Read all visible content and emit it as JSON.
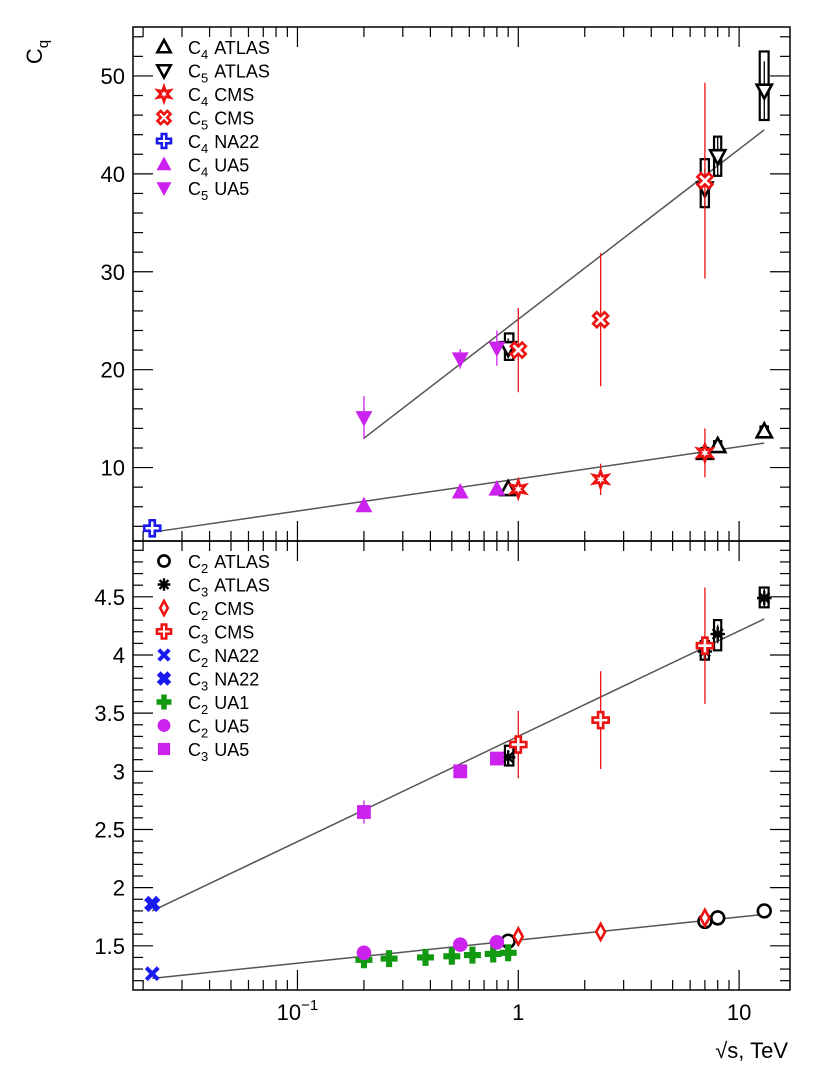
{
  "chart_data": [
    {
      "type": "scatter",
      "panel": "top",
      "ylabel": "C",
      "ylabel_sub": "q",
      "xscale": "log",
      "xlim": [
        0.018,
        17
      ],
      "ylim": [
        2.5,
        55
      ],
      "y_ticks": [
        10,
        20,
        30,
        40,
        50
      ],
      "y_tick_labels": [
        "10",
        "20",
        "30",
        "40",
        "50"
      ],
      "legend_position": "top-left",
      "legend": [
        {
          "base": "C",
          "sub": "4",
          "exp": "ATLAS",
          "marker": "triangle-up-open",
          "color": "#000000"
        },
        {
          "base": "C",
          "sub": "5",
          "exp": "ATLAS",
          "marker": "triangle-down-open",
          "color": "#000000"
        },
        {
          "base": "C",
          "sub": "4",
          "exp": "CMS",
          "marker": "star-open",
          "color": "#ee1111"
        },
        {
          "base": "C",
          "sub": "5",
          "exp": "CMS",
          "marker": "cross-x-open",
          "color": "#ee1111"
        },
        {
          "base": "C",
          "sub": "4",
          "exp": "NA22",
          "marker": "cross-open",
          "color": "#1a1aee"
        },
        {
          "base": "C",
          "sub": "4",
          "exp": "UA5",
          "marker": "triangle-up-filled",
          "color": "#cc22ee"
        },
        {
          "base": "C",
          "sub": "5",
          "exp": "UA5",
          "marker": "triangle-down-filled",
          "color": "#cc22ee"
        }
      ],
      "fit_lines": [
        {
          "from": [
            0.022,
            3.4
          ],
          "to": [
            13,
            12.5
          ]
        },
        {
          "from": [
            0.2,
            13.0
          ],
          "to": [
            13,
            44.5
          ]
        }
      ],
      "series": [
        {
          "name": "C4 ATLAS",
          "marker": "triangle-up-open",
          "color": "#000000",
          "x": [
            0.9,
            7,
            8,
            13
          ],
          "y": [
            7.8,
            11.5,
            12.2,
            13.7
          ],
          "err": [
            0.3,
            0.4,
            0.4,
            0.5
          ],
          "box": [
            [
              0.88,
              0.92,
              7.4,
              8.2
            ],
            [
              6.75,
              7.25,
              11.0,
              12.0
            ],
            [
              7.7,
              8.3,
              11.8,
              12.7
            ],
            [
              12.5,
              13.5,
              13.2,
              14.2
            ]
          ]
        },
        {
          "name": "C5 ATLAS",
          "marker": "triangle-down-open",
          "color": "#000000",
          "x": [
            0.9,
            7,
            8,
            13
          ],
          "y": [
            22.2,
            38.5,
            41.8,
            48.5
          ],
          "err": [
            1,
            2,
            2,
            3
          ],
          "box": [
            [
              0.87,
              0.95,
              21.0,
              23.7
            ],
            [
              6.7,
              7.3,
              36.6,
              41.5
            ],
            [
              7.7,
              8.3,
              39.8,
              43.8
            ],
            [
              12.4,
              13.6,
              45.5,
              52.5
            ]
          ]
        },
        {
          "name": "C4 CMS",
          "marker": "star-open",
          "color": "#ee1111",
          "x": [
            1.0,
            2.36,
            7
          ],
          "y": [
            7.8,
            8.8,
            11.5
          ],
          "err": [
            0.6,
            1.6,
            2.5
          ]
        },
        {
          "name": "C5 CMS",
          "marker": "cross-x-open",
          "color": "#ee1111",
          "x": [
            1.0,
            2.36,
            7
          ],
          "y": [
            22.0,
            25.1,
            39.3
          ],
          "err": [
            4.3,
            6.8,
            10.0
          ]
        },
        {
          "name": "C4 NA22",
          "marker": "cross-open",
          "color": "#1a1aee",
          "x": [
            0.022
          ],
          "y": [
            3.8
          ],
          "err": [
            0.2
          ]
        },
        {
          "name": "C4 UA5",
          "marker": "triangle-up-filled",
          "color": "#cc22ee",
          "x": [
            0.2,
            0.546,
            0.8
          ],
          "y": [
            6.1,
            7.5,
            7.8
          ],
          "err": [
            0.3,
            0.3,
            0.3
          ]
        },
        {
          "name": "C5 UA5",
          "marker": "triangle-down-filled",
          "color": "#cc22ee",
          "x": [
            0.2,
            0.546,
            0.8
          ],
          "y": [
            15.1,
            21.1,
            22.2
          ],
          "err": [
            2.2,
            1.0,
            1.8
          ]
        }
      ]
    },
    {
      "type": "scatter",
      "panel": "bottom",
      "xlabel": "√s, TeV",
      "xscale": "log",
      "xlim": [
        0.018,
        17
      ],
      "ylim": [
        1.12,
        4.98
      ],
      "x_ticks_labeled": [
        0.1,
        1,
        10
      ],
      "x_tick_labels": [
        {
          "base": "10",
          "exp": "−1"
        },
        {
          "base": "1",
          "exp": ""
        },
        {
          "base": "10",
          "exp": ""
        }
      ],
      "y_ticks": [
        1.5,
        2,
        2.5,
        3,
        3.5,
        4,
        4.5
      ],
      "y_tick_labels": [
        "1.5",
        "2",
        "2.5",
        "3",
        "3.5",
        "4",
        "4.5"
      ],
      "legend_position": "top-left",
      "legend": [
        {
          "base": "C",
          "sub": "2",
          "exp": "ATLAS",
          "marker": "circle-open",
          "color": "#000000"
        },
        {
          "base": "C",
          "sub": "3",
          "exp": "ATLAS",
          "marker": "asterisk",
          "color": "#000000"
        },
        {
          "base": "C",
          "sub": "2",
          "exp": "CMS",
          "marker": "diamond-open",
          "color": "#ee1111"
        },
        {
          "base": "C",
          "sub": "3",
          "exp": "CMS",
          "marker": "cross-open",
          "color": "#ee1111"
        },
        {
          "base": "C",
          "sub": "2",
          "exp": "NA22",
          "marker": "x-filled",
          "color": "#1a1aee"
        },
        {
          "base": "C",
          "sub": "3",
          "exp": "NA22",
          "marker": "cross-x-filled",
          "color": "#1a1aee"
        },
        {
          "base": "C",
          "sub": "2",
          "exp": "UA1",
          "marker": "cross-filled",
          "color": "#119911"
        },
        {
          "base": "C",
          "sub": "2",
          "exp": "UA5",
          "marker": "circle-filled",
          "color": "#cc22ee"
        },
        {
          "base": "C",
          "sub": "3",
          "exp": "UA5",
          "marker": "square-filled",
          "color": "#cc22ee"
        }
      ],
      "fit_lines": [
        {
          "from": [
            0.022,
            1.22
          ],
          "to": [
            13,
            1.77
          ]
        },
        {
          "from": [
            0.022,
            1.8
          ],
          "to": [
            13,
            4.31
          ]
        }
      ],
      "series": [
        {
          "name": "C2 ATLAS",
          "marker": "circle-open",
          "color": "#000000",
          "x": [
            0.9,
            7,
            8,
            13
          ],
          "y": [
            1.54,
            1.71,
            1.74,
            1.8
          ],
          "err": [
            0.02,
            0.02,
            0.02,
            0.02
          ],
          "box": [
            [
              0.88,
              0.92,
              1.52,
              1.56
            ],
            [
              6.75,
              7.25,
              1.69,
              1.73
            ],
            [
              7.7,
              8.3,
              1.72,
              1.76
            ],
            [
              12.5,
              13.5,
              1.78,
              1.82
            ]
          ]
        },
        {
          "name": "C3 ATLAS",
          "marker": "asterisk",
          "color": "#000000",
          "x": [
            0.9,
            7,
            8,
            13
          ],
          "y": [
            3.12,
            4.03,
            4.18,
            4.49
          ],
          "err": [
            0.05,
            0.08,
            0.08,
            0.08
          ],
          "box": [
            [
              0.87,
              0.95,
              3.05,
              3.22
            ],
            [
              6.7,
              7.3,
              3.96,
              4.12
            ],
            [
              7.7,
              8.3,
              4.04,
              4.3
            ],
            [
              12.4,
              13.6,
              4.41,
              4.58
            ]
          ]
        },
        {
          "name": "C2 CMS",
          "marker": "diamond-open",
          "color": "#ee1111",
          "x": [
            1.0,
            2.36,
            7
          ],
          "y": [
            1.58,
            1.62,
            1.74
          ],
          "err": [
            0.06,
            0.06,
            0.06
          ]
        },
        {
          "name": "C3 CMS",
          "marker": "cross-open",
          "color": "#ee1111",
          "x": [
            1.0,
            2.36,
            7
          ],
          "y": [
            3.23,
            3.44,
            4.08
          ],
          "err": [
            0.29,
            0.42,
            0.5
          ]
        },
        {
          "name": "C2 NA22",
          "marker": "x-filled",
          "color": "#1a1aee",
          "x": [
            0.022
          ],
          "y": [
            1.26
          ],
          "err": [
            0
          ]
        },
        {
          "name": "C3 NA22",
          "marker": "cross-x-filled",
          "color": "#1a1aee",
          "x": [
            0.022
          ],
          "y": [
            1.86
          ],
          "err": [
            0
          ]
        },
        {
          "name": "C2 UA1",
          "marker": "cross-filled",
          "color": "#119911",
          "x": [
            0.2,
            0.26,
            0.38,
            0.5,
            0.62,
            0.77,
            0.9
          ],
          "y": [
            1.38,
            1.39,
            1.4,
            1.41,
            1.42,
            1.43,
            1.44
          ],
          "err": [
            0.02,
            0.02,
            0.02,
            0.02,
            0.02,
            0.02,
            0.02
          ]
        },
        {
          "name": "C2 UA5",
          "marker": "circle-filled",
          "color": "#cc22ee",
          "x": [
            0.2,
            0.546,
            0.8
          ],
          "y": [
            1.44,
            1.51,
            1.53
          ],
          "err": [
            0.01,
            0.01,
            0.01
          ]
        },
        {
          "name": "C3 UA5",
          "marker": "square-filled",
          "color": "#cc22ee",
          "x": [
            0.2,
            0.546,
            0.8
          ],
          "y": [
            2.65,
            3.0,
            3.11
          ],
          "err": [
            0.1,
            0.03,
            0.05
          ]
        }
      ]
    }
  ]
}
